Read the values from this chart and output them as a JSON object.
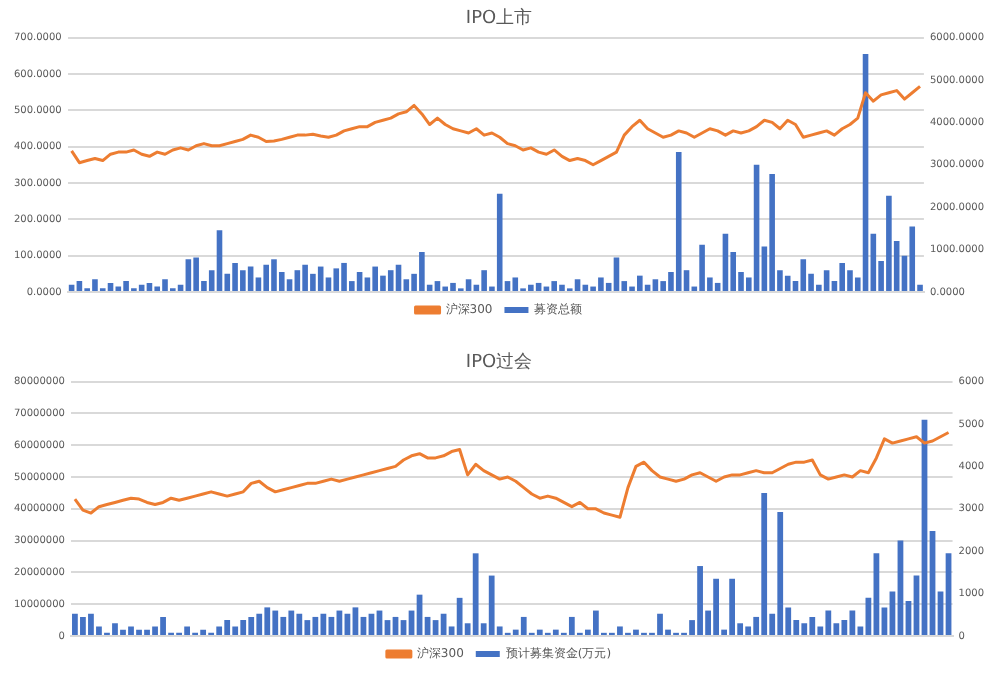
{
  "chart_data": [
    {
      "type": "bar",
      "title": "IPO上市",
      "categories": [
        null,
        null,
        null,
        null,
        null,
        null,
        null,
        null,
        null,
        null,
        null,
        null,
        null,
        null,
        null,
        null,
        null,
        null,
        null,
        null,
        null,
        null,
        null,
        null,
        null,
        null,
        null,
        null,
        null,
        null,
        null,
        null,
        null,
        null,
        null,
        null,
        null,
        null,
        null,
        null,
        null,
        null,
        null,
        null,
        null,
        null,
        null,
        null,
        null,
        null,
        null,
        null,
        null,
        null,
        null,
        null,
        null,
        null,
        null,
        null,
        null,
        null,
        null,
        null,
        null,
        null,
        null,
        null,
        null,
        null,
        null,
        null,
        null,
        null,
        null,
        null,
        null,
        null,
        null,
        null,
        null,
        null,
        null,
        null,
        null,
        null,
        null,
        null,
        null,
        null,
        null,
        null,
        null,
        null,
        null,
        null,
        null,
        null,
        null,
        null,
        null,
        null,
        null,
        null,
        null,
        null,
        null,
        null,
        null,
        null
      ],
      "series": [
        {
          "name": "募资总额",
          "color": "#4472c4",
          "values": [
            20,
            30,
            10,
            35,
            10,
            25,
            15,
            30,
            10,
            20,
            25,
            15,
            35,
            10,
            20,
            90,
            95,
            30,
            60,
            170,
            50,
            80,
            60,
            70,
            40,
            75,
            90,
            55,
            35,
            60,
            75,
            50,
            70,
            40,
            65,
            80,
            30,
            55,
            40,
            70,
            45,
            60,
            75,
            35,
            50,
            110,
            20,
            30,
            15,
            25,
            10,
            35,
            20,
            60,
            15,
            270,
            30,
            40,
            10,
            20,
            25,
            15,
            30,
            20,
            10,
            35,
            20,
            15,
            40,
            25,
            95,
            30,
            15,
            45,
            20,
            35,
            30,
            55,
            385,
            60,
            15,
            130,
            40,
            25,
            160,
            110,
            55,
            40,
            350,
            125,
            325,
            60,
            45,
            30,
            90,
            50,
            20,
            60,
            30,
            80,
            60,
            40,
            655,
            160,
            85,
            265,
            140,
            100,
            180,
            20
          ]
        },
        {
          "name": "沪深300",
          "type": "line",
          "axis": "y2",
          "color": "#ed7d31",
          "values": [
            3330,
            3050,
            3100,
            3150,
            3100,
            3250,
            3300,
            3300,
            3350,
            3250,
            3200,
            3300,
            3250,
            3350,
            3400,
            3350,
            3450,
            3500,
            3450,
            3450,
            3500,
            3550,
            3600,
            3700,
            3650,
            3550,
            3560,
            3600,
            3650,
            3700,
            3700,
            3720,
            3680,
            3650,
            3700,
            3800,
            3850,
            3900,
            3900,
            4000,
            4050,
            4100,
            4200,
            4250,
            4400,
            4200,
            3950,
            4100,
            3950,
            3850,
            3800,
            3750,
            3850,
            3700,
            3750,
            3650,
            3500,
            3450,
            3350,
            3400,
            3300,
            3250,
            3350,
            3200,
            3100,
            3150,
            3100,
            3000,
            3100,
            3200,
            3300,
            3700,
            3900,
            4050,
            3850,
            3750,
            3650,
            3700,
            3800,
            3750,
            3650,
            3750,
            3850,
            3800,
            3700,
            3800,
            3750,
            3800,
            3900,
            4050,
            4000,
            3850,
            4050,
            3950,
            3650,
            3700,
            3750,
            3800,
            3700,
            3850,
            3950,
            4100,
            4700,
            4500,
            4650,
            4700,
            4750,
            4550,
            4700,
            4850
          ]
        }
      ],
      "ylim": [
        0,
        700
      ],
      "yticks": [
        {
          "value": 0,
          "label": "0.0000"
        },
        {
          "value": 100,
          "label": "100.0000"
        },
        {
          "value": 200,
          "label": "200.0000"
        },
        {
          "value": 300,
          "label": "300.0000"
        },
        {
          "value": 400,
          "label": "400.0000"
        },
        {
          "value": 500,
          "label": "500.0000"
        },
        {
          "value": 600,
          "label": "600.0000"
        },
        {
          "value": 700,
          "label": "700.0000"
        }
      ],
      "y2lim": [
        0,
        6000
      ],
      "y2ticks": [
        {
          "value": 0,
          "label": "0.0000"
        },
        {
          "value": 1000,
          "label": "1000.0000"
        },
        {
          "value": 2000,
          "label": "2000.0000"
        },
        {
          "value": 3000,
          "label": "3000.0000"
        },
        {
          "value": 4000,
          "label": "4000.0000"
        },
        {
          "value": 5000,
          "label": "5000.0000"
        },
        {
          "value": 6000,
          "label": "6000.0000"
        }
      ],
      "grid": "y",
      "legend": "bottom"
    },
    {
      "type": "bar",
      "title": "IPO过会",
      "categories": [
        null,
        null,
        null,
        null,
        null,
        null,
        null,
        null,
        null,
        null,
        null,
        null,
        null,
        null,
        null,
        null,
        null,
        null,
        null,
        null,
        null,
        null,
        null,
        null,
        null,
        null,
        null,
        null,
        null,
        null,
        null,
        null,
        null,
        null,
        null,
        null,
        null,
        null,
        null,
        null,
        null,
        null,
        null,
        null,
        null,
        null,
        null,
        null,
        null,
        null,
        null,
        null,
        null,
        null,
        null,
        null,
        null,
        null,
        null,
        null,
        null,
        null,
        null,
        null,
        null,
        null,
        null,
        null,
        null,
        null,
        null,
        null,
        null,
        null,
        null,
        null,
        null,
        null,
        null,
        null,
        null,
        null,
        null,
        null,
        null,
        null,
        null,
        null,
        null,
        null,
        null,
        null,
        null,
        null,
        null,
        null,
        null,
        null,
        null,
        null,
        null,
        null,
        null,
        null,
        null,
        null,
        null,
        null,
        null,
        null
      ],
      "series": [
        {
          "name": "预计募集资金(万元)",
          "color": "#4472c4",
          "values": [
            7000000,
            6000000,
            7000000,
            3000000,
            1000000,
            4000000,
            2000000,
            3000000,
            2000000,
            2000000,
            3000000,
            6000000,
            1000000,
            1000000,
            3000000,
            1000000,
            2000000,
            1000000,
            3000000,
            5000000,
            3000000,
            5000000,
            6000000,
            7000000,
            9000000,
            8000000,
            6000000,
            8000000,
            7000000,
            5000000,
            6000000,
            7000000,
            6000000,
            8000000,
            7000000,
            9000000,
            6000000,
            7000000,
            8000000,
            5000000,
            6000000,
            5000000,
            8000000,
            13000000,
            6000000,
            5000000,
            7000000,
            3000000,
            12000000,
            4000000,
            26000000,
            4000000,
            19000000,
            3000000,
            1000000,
            2000000,
            6000000,
            1000000,
            2000000,
            1000000,
            2000000,
            1000000,
            6000000,
            1000000,
            2000000,
            8000000,
            1000000,
            1000000,
            3000000,
            1000000,
            2000000,
            1000000,
            1000000,
            7000000,
            2000000,
            1000000,
            1000000,
            5000000,
            22000000,
            8000000,
            18000000,
            2000000,
            18000000,
            4000000,
            3000000,
            6000000,
            45000000,
            7000000,
            39000000,
            9000000,
            5000000,
            4000000,
            6000000,
            3000000,
            8000000,
            4000000,
            5000000,
            8000000,
            3000000,
            12000000,
            26000000,
            9000000,
            14000000,
            30000000,
            11000000,
            19000000,
            68000000,
            33000000,
            14000000,
            26000000
          ]
        },
        {
          "name": "沪深300",
          "type": "line",
          "axis": "y2",
          "color": "#ed7d31",
          "values": [
            3230,
            2970,
            2900,
            3050,
            3100,
            3150,
            3200,
            3250,
            3230,
            3150,
            3100,
            3150,
            3250,
            3200,
            3250,
            3300,
            3350,
            3400,
            3350,
            3300,
            3350,
            3400,
            3600,
            3650,
            3500,
            3400,
            3450,
            3500,
            3550,
            3600,
            3600,
            3650,
            3700,
            3650,
            3700,
            3750,
            3800,
            3850,
            3900,
            3950,
            4000,
            4150,
            4250,
            4300,
            4200,
            4200,
            4250,
            4350,
            4400,
            3800,
            4050,
            3900,
            3800,
            3700,
            3750,
            3650,
            3500,
            3350,
            3250,
            3300,
            3250,
            3150,
            3050,
            3150,
            3000,
            3000,
            2900,
            2850,
            2800,
            3500,
            4000,
            4100,
            3900,
            3750,
            3700,
            3650,
            3700,
            3800,
            3850,
            3750,
            3650,
            3750,
            3800,
            3800,
            3850,
            3900,
            3850,
            3850,
            3950,
            4050,
            4100,
            4100,
            4150,
            3800,
            3700,
            3750,
            3800,
            3750,
            3900,
            3850,
            4200,
            4650,
            4550,
            4600,
            4650,
            4700,
            4550,
            4600,
            4700,
            4800
          ]
        }
      ],
      "ylim": [
        0,
        80000000
      ],
      "yticks": [
        0,
        10000000,
        20000000,
        30000000,
        40000000,
        50000000,
        60000000,
        70000000,
        80000000
      ],
      "y2lim": [
        0,
        6000
      ],
      "y2ticks": [
        0,
        1000,
        2000,
        3000,
        4000,
        5000,
        6000
      ],
      "grid": "y",
      "legend": "bottom"
    }
  ]
}
